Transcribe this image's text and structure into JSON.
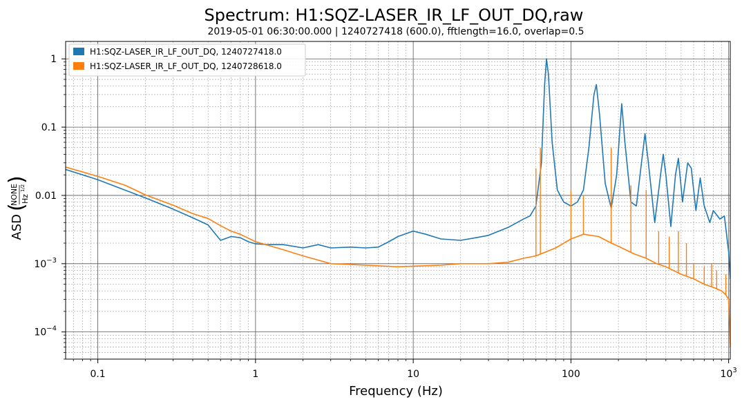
{
  "chart_data": {
    "type": "line",
    "title": "Spectrum: H1:SQZ-LASER_IR_LF_OUT_DQ,raw",
    "subtitle": "2019-05-01 06:30:00.000 | 1240727418 (600.0), fftlength=16.0, overlap=0.5",
    "xlabel": "Frequency (Hz)",
    "ylabel": "ASD",
    "ylabel_unit": {
      "numerator": "NONE",
      "denominator": "Hz",
      "exponent": "1/2"
    },
    "xscale": "log",
    "yscale": "log",
    "xlim": [
      0.0625,
      1024
    ],
    "ylim": [
      4e-05,
      1.8
    ],
    "grid": true,
    "legend_position": "top-left",
    "x_ticks": [
      {
        "value": 0.1,
        "label": "0.1",
        "sup": ""
      },
      {
        "value": 1,
        "label": "1",
        "sup": ""
      },
      {
        "value": 10,
        "label": "10",
        "sup": ""
      },
      {
        "value": 100,
        "label": "100",
        "sup": ""
      },
      {
        "value": 1000,
        "label": "10",
        "sup": "3"
      }
    ],
    "y_ticks": [
      {
        "value": 1,
        "label": "1",
        "sup": ""
      },
      {
        "value": 0.1,
        "label": "0.1",
        "sup": ""
      },
      {
        "value": 0.01,
        "label": "0.01",
        "sup": ""
      },
      {
        "value": 0.001,
        "label": "10",
        "sup": "−3"
      },
      {
        "value": 0.0001,
        "label": "10",
        "sup": "−4"
      }
    ],
    "series": [
      {
        "name": "H1:SQZ-LASER_IR_LF_OUT_DQ, 1240727418.0",
        "color": "#1f77b4",
        "points": [
          [
            0.0625,
            0.024
          ],
          [
            0.1,
            0.017
          ],
          [
            0.2,
            0.0092
          ],
          [
            0.3,
            0.0063
          ],
          [
            0.4,
            0.0047
          ],
          [
            0.5,
            0.0037
          ],
          [
            0.6,
            0.0022
          ],
          [
            0.7,
            0.0025
          ],
          [
            0.8,
            0.0024
          ],
          [
            0.9,
            0.0021
          ],
          [
            1.0,
            0.00195
          ],
          [
            1.2,
            0.0019
          ],
          [
            1.5,
            0.0019
          ],
          [
            2.0,
            0.0017
          ],
          [
            2.5,
            0.0019
          ],
          [
            3.0,
            0.0017
          ],
          [
            4.0,
            0.00175
          ],
          [
            5.0,
            0.0017
          ],
          [
            6.0,
            0.00175
          ],
          [
            7.0,
            0.0021
          ],
          [
            8.0,
            0.0025
          ],
          [
            10.0,
            0.003
          ],
          [
            12.0,
            0.0027
          ],
          [
            15.0,
            0.0023
          ],
          [
            20.0,
            0.0022
          ],
          [
            25.0,
            0.0024
          ],
          [
            30.0,
            0.0026
          ],
          [
            40.0,
            0.0034
          ],
          [
            50.0,
            0.0045
          ],
          [
            55.0,
            0.005
          ],
          [
            60.0,
            0.007
          ],
          [
            65.0,
            0.03
          ],
          [
            68.0,
            0.4
          ],
          [
            70.0,
            1.0
          ],
          [
            72.0,
            0.6
          ],
          [
            76.0,
            0.06
          ],
          [
            82.0,
            0.012
          ],
          [
            90.0,
            0.008
          ],
          [
            100.0,
            0.007
          ],
          [
            110.0,
            0.008
          ],
          [
            120.0,
            0.012
          ],
          [
            130.0,
            0.05
          ],
          [
            140.0,
            0.3
          ],
          [
            145.0,
            0.42
          ],
          [
            152.0,
            0.15
          ],
          [
            165.0,
            0.015
          ],
          [
            180.0,
            0.0065
          ],
          [
            195.0,
            0.02
          ],
          [
            205.0,
            0.1
          ],
          [
            210.0,
            0.22
          ],
          [
            220.0,
            0.06
          ],
          [
            240.0,
            0.008
          ],
          [
            260.0,
            0.007
          ],
          [
            280.0,
            0.03
          ],
          [
            295.0,
            0.08
          ],
          [
            310.0,
            0.03
          ],
          [
            340.0,
            0.004
          ],
          [
            370.0,
            0.02
          ],
          [
            385.0,
            0.04
          ],
          [
            400.0,
            0.02
          ],
          [
            430.0,
            0.0035
          ],
          [
            460.0,
            0.02
          ],
          [
            480.0,
            0.035
          ],
          [
            510.0,
            0.008
          ],
          [
            550.0,
            0.03
          ],
          [
            580.0,
            0.025
          ],
          [
            620.0,
            0.006
          ],
          [
            660.0,
            0.018
          ],
          [
            700.0,
            0.007
          ],
          [
            760.0,
            0.004
          ],
          [
            800.0,
            0.006
          ],
          [
            880.0,
            0.0045
          ],
          [
            940.0,
            0.005
          ],
          [
            1000.0,
            0.0015
          ],
          [
            1024.0,
            0.0006
          ]
        ]
      },
      {
        "name": "H1:SQZ-LASER_IR_LF_OUT_DQ, 1240728618.0",
        "color": "#ff7f0e",
        "points": [
          [
            0.0625,
            0.026
          ],
          [
            0.1,
            0.019
          ],
          [
            0.15,
            0.014
          ],
          [
            0.2,
            0.0102
          ],
          [
            0.3,
            0.0072
          ],
          [
            0.4,
            0.0054
          ],
          [
            0.5,
            0.0046
          ],
          [
            0.6,
            0.0036
          ],
          [
            0.7,
            0.003
          ],
          [
            0.8,
            0.0027
          ],
          [
            1.0,
            0.0021
          ],
          [
            1.5,
            0.0016
          ],
          [
            2.0,
            0.0013
          ],
          [
            3.0,
            0.001
          ],
          [
            5.0,
            0.00095
          ],
          [
            8.0,
            0.0009
          ],
          [
            10.0,
            0.00092
          ],
          [
            15.0,
            0.00095
          ],
          [
            20.0,
            0.001
          ],
          [
            30.0,
            0.001
          ],
          [
            40.0,
            0.00105
          ],
          [
            50.0,
            0.0012
          ],
          [
            60.0,
            0.0013
          ],
          [
            70.0,
            0.0015
          ],
          [
            80.0,
            0.0017
          ],
          [
            100.0,
            0.0023
          ],
          [
            120.0,
            0.0027
          ],
          [
            150.0,
            0.0025
          ],
          [
            180.0,
            0.002
          ],
          [
            200.0,
            0.0018
          ],
          [
            250.0,
            0.0014
          ],
          [
            300.0,
            0.0012
          ],
          [
            350.0,
            0.001
          ],
          [
            400.0,
            0.0009
          ],
          [
            500.0,
            0.0007
          ],
          [
            600.0,
            0.0006
          ],
          [
            700.0,
            0.0005
          ],
          [
            800.0,
            0.00045
          ],
          [
            900.0,
            0.0004
          ],
          [
            960.0,
            0.00035
          ],
          [
            1000.0,
            0.0003
          ],
          [
            1024.0,
            6e-05
          ]
        ],
        "spikes": [
          [
            60,
            0.025
          ],
          [
            64,
            0.05
          ],
          [
            100,
            0.012
          ],
          [
            120,
            0.01
          ],
          [
            180,
            0.05
          ],
          [
            240,
            0.014
          ],
          [
            300,
            0.012
          ],
          [
            360,
            0.003
          ],
          [
            420,
            0.0025
          ],
          [
            480,
            0.003
          ],
          [
            540,
            0.002
          ],
          [
            600,
            0.001
          ],
          [
            700,
            0.0009
          ],
          [
            780,
            0.001
          ],
          [
            840,
            0.0008
          ],
          [
            960,
            0.0007
          ]
        ]
      }
    ]
  }
}
